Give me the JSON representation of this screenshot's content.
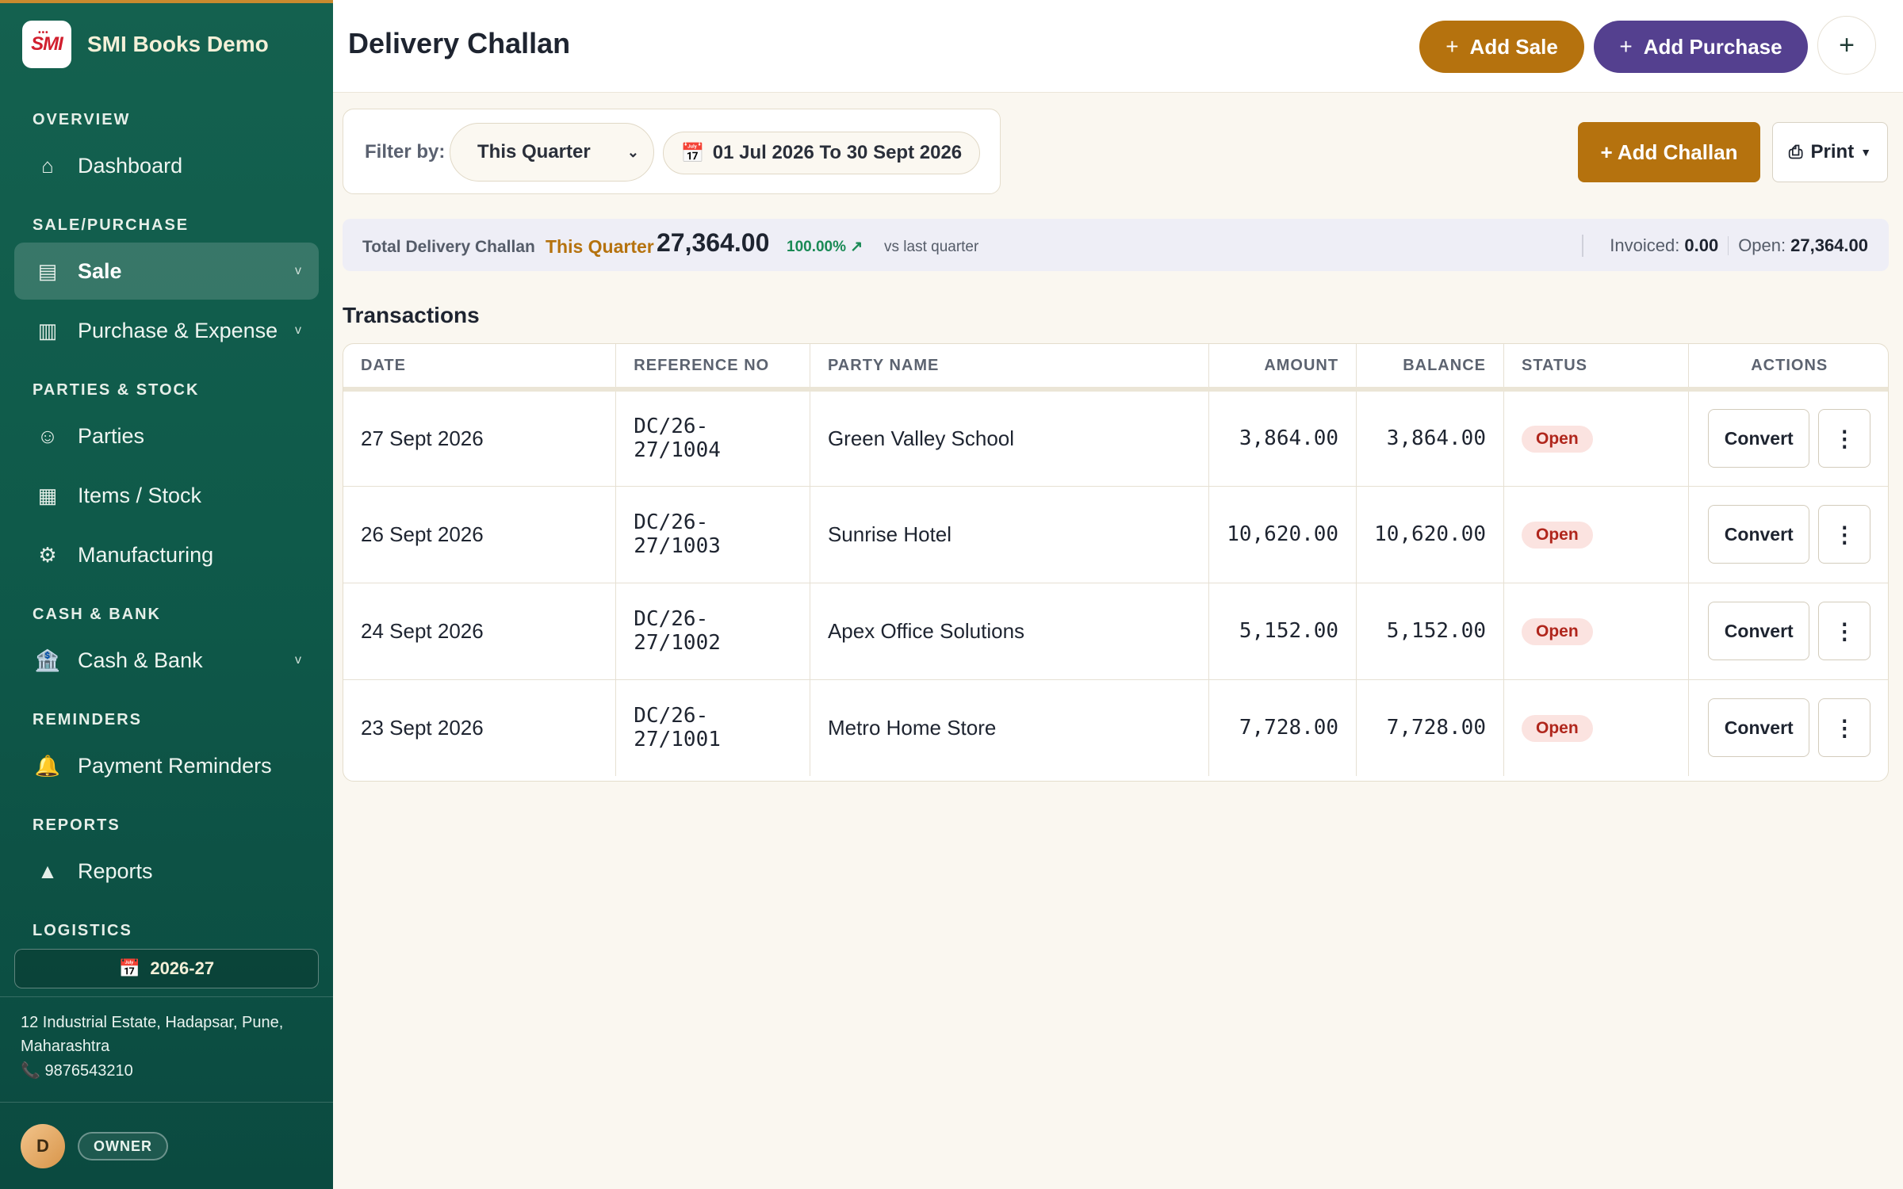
{
  "brand": {
    "logo_text": "SMI",
    "name": "SMI Books Demo"
  },
  "sidebar": {
    "sections": {
      "overview": "OVERVIEW",
      "sale_purchase": "SALE/PURCHASE",
      "parties_stock": "PARTIES & STOCK",
      "cash_bank": "CASH & BANK",
      "reminders": "REMINDERS",
      "reports": "REPORTS",
      "logistics": "LOGISTICS"
    },
    "items": [
      {
        "label": "Dashboard",
        "icon": "home-icon"
      },
      {
        "label": "Sale",
        "icon": "document-icon",
        "active": true
      },
      {
        "label": "Purchase & Expense",
        "icon": "ledger-icon"
      },
      {
        "label": "Parties",
        "icon": "smiley-icon"
      },
      {
        "label": "Items / Stock",
        "icon": "grid-icon"
      },
      {
        "label": "Manufacturing",
        "icon": "gear-icon"
      },
      {
        "label": "Cash & Bank",
        "icon": "bank-icon"
      },
      {
        "label": "Payment Reminders",
        "icon": "bell-icon"
      },
      {
        "label": "Reports",
        "icon": "triangle-icon"
      }
    ],
    "chevron": "v",
    "financial_year": "2026-27",
    "address": "12 Industrial Estate, Hadapsar, Pune, Maharashtra",
    "phone": "9876543210",
    "user_initial": "D",
    "role": "OWNER"
  },
  "header": {
    "title": "Delivery Challan",
    "add_sale": "Add Sale",
    "add_purchase": "Add Purchase",
    "plus": "+"
  },
  "filter": {
    "label": "Filter by:",
    "selected": "This Quarter",
    "date_range": "01 Jul 2026 To 30 Sept 2026"
  },
  "actions": {
    "add_challan": "+ Add Challan",
    "print": "Print"
  },
  "summary": {
    "label": "Total Delivery Challan",
    "period": "This Quarter",
    "total": "27,364.00",
    "change": "100.00% ↗",
    "vs": "vs last quarter",
    "invoiced_label": "Invoiced:",
    "invoiced": "0.00",
    "open_label": "Open:",
    "open": "27,364.00"
  },
  "transactions": {
    "title": "Transactions",
    "columns": [
      "DATE",
      "REFERENCE NO",
      "PARTY NAME",
      "AMOUNT",
      "BALANCE",
      "STATUS",
      "ACTIONS"
    ],
    "rows": [
      {
        "date": "27 Sept 2026",
        "ref": "DC/26-27/1004",
        "party": "Green Valley School",
        "amount": "3,864.00",
        "balance": "3,864.00",
        "status": "Open",
        "action": "Convert"
      },
      {
        "date": "26 Sept 2026",
        "ref": "DC/26-27/1003",
        "party": "Sunrise Hotel",
        "amount": "10,620.00",
        "balance": "10,620.00",
        "status": "Open",
        "action": "Convert"
      },
      {
        "date": "24 Sept 2026",
        "ref": "DC/26-27/1002",
        "party": "Apex Office Solutions",
        "amount": "5,152.00",
        "balance": "5,152.00",
        "status": "Open",
        "action": "Convert"
      },
      {
        "date": "23 Sept 2026",
        "ref": "DC/26-27/1001",
        "party": "Metro Home Store",
        "amount": "7,728.00",
        "balance": "7,728.00",
        "status": "Open",
        "action": "Convert"
      }
    ]
  },
  "colors": {
    "sidebar": "#0f5a4a",
    "accent": "#b5720e",
    "purple": "#54408f",
    "open_status": "#b0261c"
  }
}
